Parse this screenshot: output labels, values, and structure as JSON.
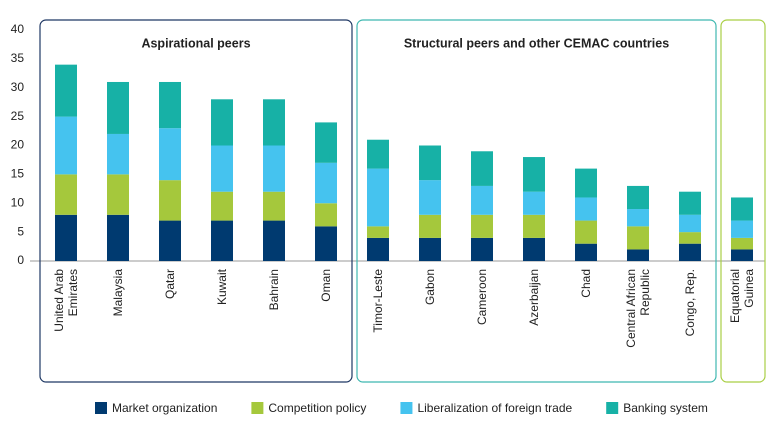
{
  "chart_data": {
    "type": "stacked-bar",
    "groups": [
      {
        "label": "Aspirational peers",
        "color": "#1f3864",
        "size": 6
      },
      {
        "label": "Structural peers and other CEMAC countries",
        "color": "#3fb8b0",
        "size": 7
      },
      {
        "color": "#a9cf45",
        "size": 1
      }
    ],
    "categories": [
      "United Arab\nEmirates",
      "Malaysia",
      "Qatar",
      "Kuwait",
      "Bahrain",
      "Oman",
      "Timor-Leste",
      "Gabon",
      "Cameroon",
      "Azerbaijan",
      "Chad",
      "Central African\nRepublic",
      "Congo, Rep.",
      "Equatorial\nGuinea"
    ],
    "series": [
      {
        "name": "Market organization",
        "color": "#003a70",
        "values": [
          8,
          8,
          7,
          7,
          7,
          6,
          4,
          4,
          4,
          4,
          3,
          2,
          3,
          2
        ]
      },
      {
        "name": "Competition policy",
        "color": "#a5c83c",
        "values": [
          7,
          7,
          7,
          5,
          5,
          4,
          2,
          4,
          4,
          4,
          4,
          4,
          2,
          2
        ]
      },
      {
        "name": "Liberalization of foreign trade",
        "color": "#45c3ef",
        "values": [
          10,
          7,
          9,
          8,
          8,
          7,
          10,
          6,
          5,
          4,
          4,
          3,
          3,
          3
        ]
      },
      {
        "name": "Banking system",
        "color": "#17b1a6",
        "values": [
          9,
          9,
          8,
          8,
          8,
          7,
          5,
          6,
          6,
          6,
          5,
          4,
          4,
          4
        ]
      }
    ],
    "ylim": [
      0,
      40
    ],
    "yticks": [
      0,
      5,
      10,
      15,
      20,
      25,
      30,
      35,
      40
    ]
  }
}
